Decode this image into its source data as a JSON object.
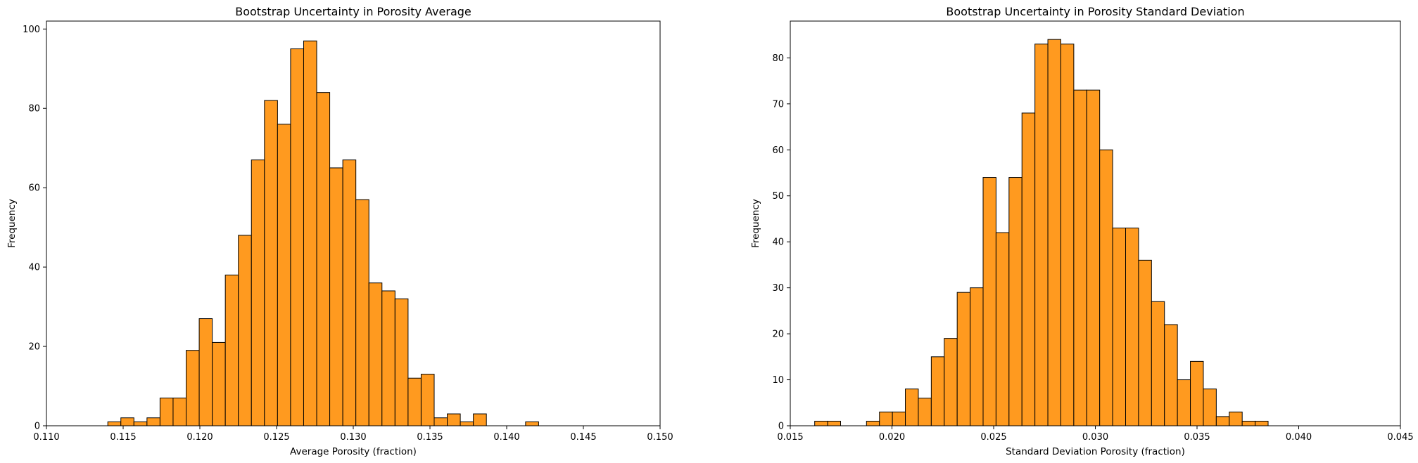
{
  "chart_data": [
    {
      "type": "bar",
      "title": "Bootstrap Uncertainty in Porosity Average",
      "xlabel": "Average Porosity (fraction)",
      "ylabel": "Frequency",
      "xlim": [
        0.11,
        0.15
      ],
      "ylim": [
        0,
        102
      ],
      "xticks": [
        "0.110",
        "0.115",
        "0.120",
        "0.125",
        "0.130",
        "0.135",
        "0.140",
        "0.145",
        "0.150"
      ],
      "yticks": [
        "0",
        "20",
        "40",
        "60",
        "80",
        "100"
      ],
      "bin_start": 0.114,
      "bin_width": 0.000851,
      "values": [
        1,
        2,
        1,
        2,
        7,
        7,
        19,
        27,
        21,
        38,
        48,
        67,
        82,
        76,
        95,
        97,
        84,
        65,
        67,
        57,
        36,
        34,
        32,
        12,
        13,
        2,
        3,
        1,
        3,
        0,
        0,
        0,
        1
      ],
      "color": "#ff9a1f",
      "edgecolor": "#000000",
      "grid": false
    },
    {
      "type": "bar",
      "title": "Bootstrap Uncertainty in Porosity Standard Deviation",
      "xlabel": "Standard Deviation Porosity (fraction)",
      "ylabel": "Frequency",
      "xlim": [
        0.015,
        0.045
      ],
      "ylim": [
        0,
        88
      ],
      "xticks": [
        "0.015",
        "0.020",
        "0.025",
        "0.030",
        "0.035",
        "0.040",
        "0.045"
      ],
      "yticks": [
        "0",
        "10",
        "20",
        "30",
        "40",
        "50",
        "60",
        "70",
        "80"
      ],
      "bin_start": 0.0162,
      "bin_width": 0.000637,
      "values": [
        1,
        1,
        0,
        0,
        1,
        3,
        3,
        8,
        6,
        15,
        19,
        29,
        30,
        54,
        42,
        54,
        68,
        83,
        84,
        83,
        73,
        73,
        60,
        43,
        43,
        36,
        27,
        22,
        10,
        14,
        8,
        2,
        3,
        1,
        1
      ],
      "color": "#ff9a1f",
      "edgecolor": "#000000",
      "grid": false
    }
  ]
}
